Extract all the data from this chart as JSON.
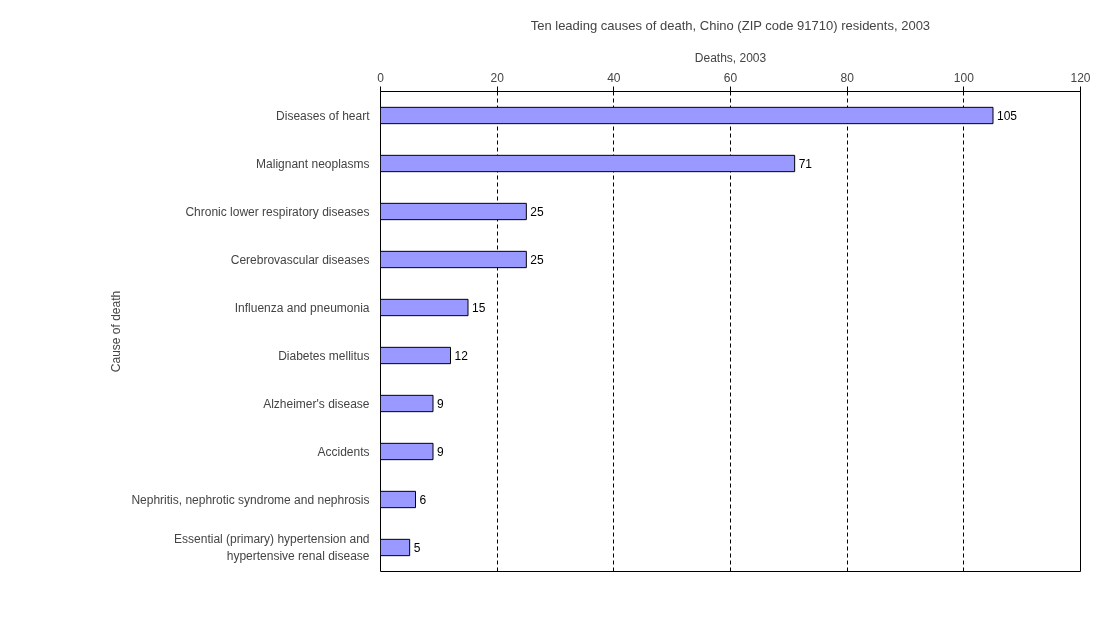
{
  "chart_data": {
    "type": "bar",
    "orientation": "horizontal",
    "title": "Ten leading causes of death, Chino (ZIP code 91710) residents, 2003",
    "xlabel": "Deaths, 2003",
    "ylabel": "Cause of death",
    "categories": [
      "Diseases of heart",
      "Malignant neoplasms",
      "Chronic lower respiratory diseases",
      "Cerebrovascular diseases",
      "Influenza and pneumonia",
      "Diabetes mellitus",
      "Alzheimer's disease",
      "Accidents",
      "Nephritis, nephrotic syndrome and nephrosis",
      "Essential (primary) hypertension and hypertensive renal disease"
    ],
    "values": [
      105,
      71,
      25,
      25,
      15,
      12,
      9,
      9,
      6,
      5
    ],
    "color": "#9999ff",
    "xlim": [
      0,
      120
    ],
    "xticks": [
      0,
      20,
      40,
      60,
      80,
      100,
      120
    ],
    "grid": "x",
    "data_labels": true
  }
}
